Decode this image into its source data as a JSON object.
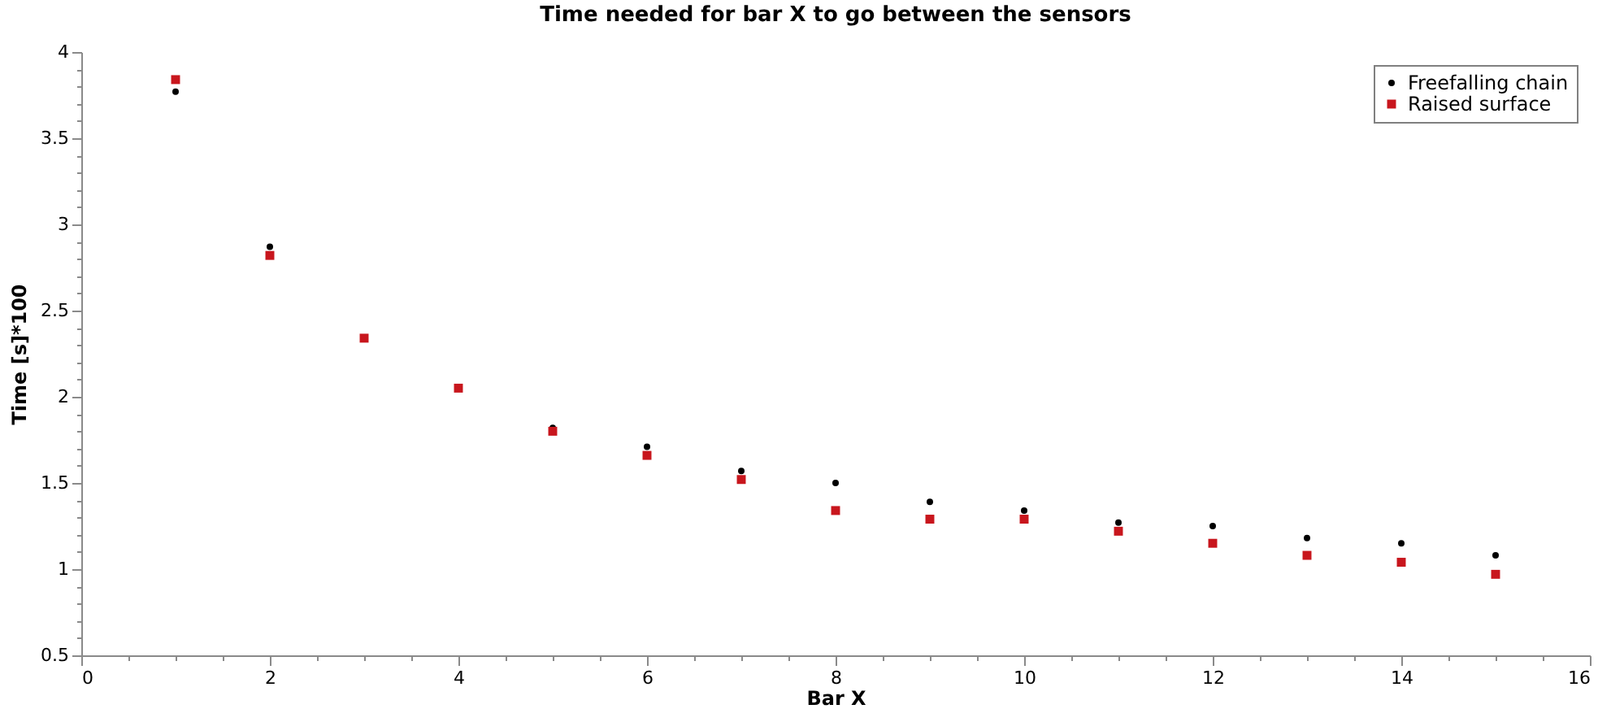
{
  "chart_data": {
    "type": "scatter",
    "title": "Time needed for bar X to go between the sensors",
    "xlabel": "Bar X",
    "ylabel": "Time [s]*100",
    "x": [
      1,
      2,
      3,
      4,
      5,
      6,
      7,
      8,
      9,
      10,
      11,
      12,
      13,
      14,
      15
    ],
    "series": [
      {
        "name": "Freefalling chain",
        "color": "#000000",
        "marker": "circle",
        "values": [
          3.77,
          2.87,
          null,
          null,
          1.82,
          1.71,
          1.57,
          1.5,
          1.39,
          1.34,
          1.27,
          1.25,
          1.18,
          1.15,
          1.08
        ]
      },
      {
        "name": "Raised surface",
        "color": "#c8161d",
        "marker": "square",
        "values": [
          3.84,
          2.82,
          2.34,
          2.05,
          1.8,
          1.66,
          1.52,
          1.34,
          1.29,
          1.29,
          1.22,
          1.15,
          1.08,
          1.04,
          0.97
        ]
      }
    ],
    "xlim": [
      0,
      16
    ],
    "xticks": [
      0,
      {
        "value": 0.5,
        "label": null
      },
      {
        "value": 1,
        "label": null
      },
      {
        "value": 1.5,
        "label": null
      },
      2,
      {
        "value": 2.5,
        "label": null
      },
      {
        "value": 3,
        "label": null
      },
      {
        "value": 3.5,
        "label": null
      },
      4,
      {
        "value": 4.5,
        "label": null
      },
      {
        "value": 5,
        "label": null
      },
      {
        "value": 5.5,
        "label": null
      },
      6,
      {
        "value": 6.5,
        "label": null
      },
      {
        "value": 7,
        "label": null
      },
      {
        "value": 7.5,
        "label": null
      },
      8,
      {
        "value": 8.5,
        "label": null
      },
      {
        "value": 9,
        "label": null
      },
      {
        "value": 9.5,
        "label": null
      },
      10,
      {
        "value": 10.5,
        "label": null
      },
      {
        "value": 11,
        "label": null
      },
      {
        "value": 11.5,
        "label": null
      },
      12,
      {
        "value": 12.5,
        "label": null
      },
      {
        "value": 13,
        "label": null
      },
      {
        "value": 13.5,
        "label": null
      },
      14,
      {
        "value": 14.5,
        "label": null
      },
      {
        "value": 15,
        "label": null
      },
      {
        "value": 15.5,
        "label": null
      },
      16
    ],
    "ylim": [
      0.5,
      4
    ],
    "yticks": [
      0.5,
      {
        "value": 0.6,
        "label": null
      },
      {
        "value": 0.7,
        "label": null
      },
      {
        "value": 0.8,
        "label": null
      },
      {
        "value": 0.9,
        "label": null
      },
      1,
      {
        "value": 1.1,
        "label": null
      },
      {
        "value": 1.2,
        "label": null
      },
      {
        "value": 1.3,
        "label": null
      },
      {
        "value": 1.4,
        "label": null
      },
      1.5,
      {
        "value": 1.6,
        "label": null
      },
      {
        "value": 1.7,
        "label": null
      },
      {
        "value": 1.8,
        "label": null
      },
      {
        "value": 1.9,
        "label": null
      },
      2,
      {
        "value": 2.1,
        "label": null
      },
      {
        "value": 2.2,
        "label": null
      },
      {
        "value": 2.3,
        "label": null
      },
      {
        "value": 2.4,
        "label": null
      },
      2.5,
      {
        "value": 2.6,
        "label": null
      },
      {
        "value": 2.7,
        "label": null
      },
      {
        "value": 2.8,
        "label": null
      },
      {
        "value": 2.9,
        "label": null
      },
      3,
      {
        "value": 3.1,
        "label": null
      },
      {
        "value": 3.2,
        "label": null
      },
      {
        "value": 3.3,
        "label": null
      },
      {
        "value": 3.4,
        "label": null
      },
      3.5,
      {
        "value": 3.6,
        "label": null
      },
      {
        "value": 3.7,
        "label": null
      },
      {
        "value": 3.8,
        "label": null
      },
      {
        "value": 3.9,
        "label": null
      },
      4
    ],
    "legend": "top right"
  }
}
